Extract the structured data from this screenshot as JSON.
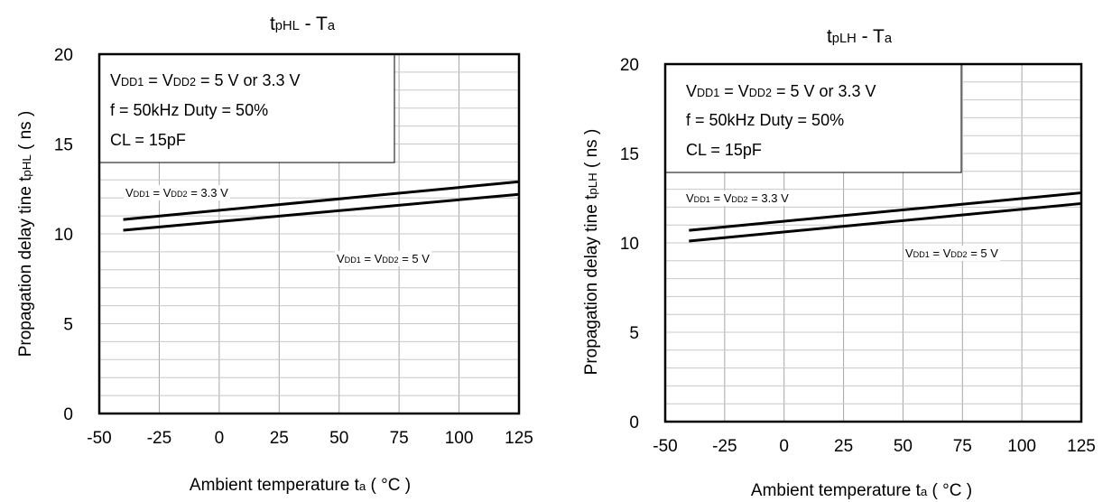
{
  "chart_data": [
    {
      "type": "line",
      "title": {
        "main": "t",
        "sub": "pHL",
        "rest": " - T",
        "sub2": "a"
      },
      "xlabel": {
        "main": "Ambient temperature t",
        "sub": "a",
        "rest": " ( °C )"
      },
      "ylabel": {
        "main": "Propagation delay tine t",
        "sub": "pHL",
        "rest": "  ( ns )"
      },
      "xlim": [
        -50,
        125
      ],
      "ylim": [
        0,
        20
      ],
      "x_ticks": [
        -50,
        -25,
        0,
        25,
        50,
        75,
        100,
        125
      ],
      "y_ticks": [
        0,
        5,
        10,
        15,
        20
      ],
      "grid": true,
      "conditions": [
        {
          "main": "V",
          "sub": "DD1",
          "rest": " = V",
          "sub2": "DD2",
          "rest2": " = 5 V or 3.3 V"
        },
        {
          "main": "f = 50kHz Duty = 50%"
        },
        {
          "main": "CL = 15pF"
        }
      ],
      "series": [
        {
          "name": {
            "main": "V",
            "sub": "DD1",
            "rest": " = V",
            "sub2": "DD2",
            "rest2": " = 3.3 V"
          },
          "x": [
            -40,
            125
          ],
          "y": [
            10.8,
            12.9
          ]
        },
        {
          "name": {
            "main": "V",
            "sub": "DD1",
            "rest": " = V",
            "sub2": "DD2",
            "rest2": " = 5 V"
          },
          "x": [
            -40,
            125
          ],
          "y": [
            10.2,
            12.2
          ]
        }
      ]
    },
    {
      "type": "line",
      "title": {
        "main": "t",
        "sub": "pLH",
        "rest": " - T",
        "sub2": "a"
      },
      "xlabel": {
        "main": "Ambient temperature t",
        "sub": "a",
        "rest": " ( °C )"
      },
      "ylabel": {
        "main": "Propagation delay tine t",
        "sub": "pLH",
        "rest": "  ( ns )"
      },
      "xlim": [
        -50,
        125
      ],
      "ylim": [
        0,
        20
      ],
      "x_ticks": [
        -50,
        -25,
        0,
        25,
        50,
        75,
        100,
        125
      ],
      "y_ticks": [
        0,
        5,
        10,
        15,
        20
      ],
      "grid": true,
      "conditions": [
        {
          "main": "V",
          "sub": "DD1",
          "rest": " = V",
          "sub2": "DD2",
          "rest2": " = 5 V or 3.3 V"
        },
        {
          "main": "f = 50kHz Duty = 50%"
        },
        {
          "main": "CL = 15pF"
        }
      ],
      "series": [
        {
          "name": {
            "main": "V",
            "sub": "DD1",
            "rest": " = V",
            "sub2": "DD2",
            "rest2": " = 3.3 V"
          },
          "x": [
            -40,
            125
          ],
          "y": [
            10.7,
            12.8
          ]
        },
        {
          "name": {
            "main": "V",
            "sub": "DD1",
            "rest": " = V",
            "sub2": "DD2",
            "rest2": " = 5 V"
          },
          "x": [
            -40,
            125
          ],
          "y": [
            10.1,
            12.2
          ]
        }
      ]
    }
  ]
}
